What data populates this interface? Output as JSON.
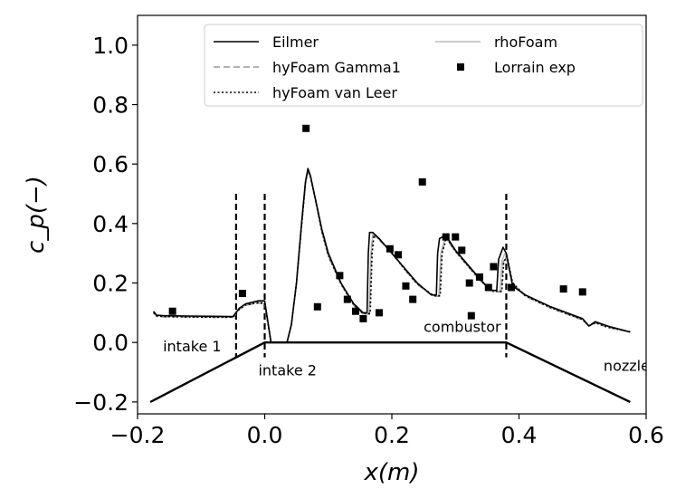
{
  "chart_data": {
    "type": "line",
    "title": "",
    "xlabel": "x(m)",
    "ylabel": "c_p(−)",
    "xlim": [
      -0.2,
      0.6
    ],
    "ylim": [
      -0.24,
      1.1
    ],
    "xticks": [
      -0.2,
      0.0,
      0.2,
      0.4,
      0.6
    ],
    "xtick_labels": [
      "−0.2",
      "0.0",
      "0.2",
      "0.4",
      "0.6"
    ],
    "yticks": [
      -0.2,
      0.0,
      0.2,
      0.4,
      0.6,
      0.8,
      1.0
    ],
    "ytick_labels": [
      "−0.2",
      "0.0",
      "0.2",
      "0.4",
      "0.6",
      "0.8",
      "1.0"
    ],
    "grid": false,
    "legend_placement": "top-right",
    "legend": [
      {
        "label": "Eilmer",
        "style": "solid",
        "color": "#000000"
      },
      {
        "label": "hyFoam Gamma1",
        "style": "dashed",
        "color": "#999999"
      },
      {
        "label": "hyFoam van Leer",
        "style": "dotted",
        "color": "#000000"
      },
      {
        "label": "rhoFoam",
        "style": "solid",
        "color": "#bbbbbb"
      },
      {
        "label": "Lorrain exp",
        "style": "marker",
        "color": "#000000"
      }
    ],
    "series": [
      {
        "name": "Eilmer",
        "style": "solid",
        "color": "#000000",
        "points": [
          [
            -0.175,
            0.105
          ],
          [
            -0.17,
            0.092
          ],
          [
            -0.16,
            0.09
          ],
          [
            -0.12,
            0.089
          ],
          [
            -0.08,
            0.088
          ],
          [
            -0.05,
            0.087
          ],
          [
            -0.04,
            0.115
          ],
          [
            -0.03,
            0.13
          ],
          [
            -0.01,
            0.14
          ],
          [
            0.0,
            0.14
          ],
          [
            0.01,
            0.0
          ],
          [
            0.035,
            0.0
          ],
          [
            0.042,
            0.06
          ],
          [
            0.05,
            0.2
          ],
          [
            0.058,
            0.4
          ],
          [
            0.064,
            0.54
          ],
          [
            0.068,
            0.585
          ],
          [
            0.072,
            0.56
          ],
          [
            0.08,
            0.48
          ],
          [
            0.09,
            0.38
          ],
          [
            0.1,
            0.3
          ],
          [
            0.12,
            0.2
          ],
          [
            0.14,
            0.13
          ],
          [
            0.155,
            0.1
          ],
          [
            0.161,
            0.1
          ],
          [
            0.163,
            0.3
          ],
          [
            0.165,
            0.37
          ],
          [
            0.17,
            0.37
          ],
          [
            0.18,
            0.35
          ],
          [
            0.2,
            0.3
          ],
          [
            0.22,
            0.25
          ],
          [
            0.24,
            0.2
          ],
          [
            0.262,
            0.16
          ],
          [
            0.27,
            0.16
          ],
          [
            0.272,
            0.3
          ],
          [
            0.275,
            0.35
          ],
          [
            0.285,
            0.36
          ],
          [
            0.3,
            0.31
          ],
          [
            0.32,
            0.26
          ],
          [
            0.34,
            0.21
          ],
          [
            0.355,
            0.175
          ],
          [
            0.365,
            0.175
          ],
          [
            0.368,
            0.28
          ],
          [
            0.375,
            0.32
          ],
          [
            0.38,
            0.3
          ],
          [
            0.39,
            0.19
          ],
          [
            0.41,
            0.16
          ],
          [
            0.45,
            0.12
          ],
          [
            0.5,
            0.08
          ],
          [
            0.51,
            0.055
          ],
          [
            0.52,
            0.07
          ],
          [
            0.54,
            0.055
          ],
          [
            0.575,
            0.035
          ]
        ]
      },
      {
        "name": "hyFoam Gamma1",
        "style": "dashed",
        "color": "#999999",
        "points": [
          [
            -0.175,
            0.1
          ],
          [
            -0.17,
            0.088
          ],
          [
            -0.16,
            0.086
          ],
          [
            -0.12,
            0.085
          ],
          [
            -0.08,
            0.084
          ],
          [
            -0.05,
            0.084
          ],
          [
            -0.04,
            0.11
          ],
          [
            -0.03,
            0.125
          ],
          [
            -0.01,
            0.132
          ],
          [
            0.0,
            0.13
          ],
          [
            0.01,
            0.0
          ],
          [
            0.035,
            0.0
          ],
          [
            0.042,
            0.06
          ],
          [
            0.05,
            0.2
          ],
          [
            0.058,
            0.39
          ],
          [
            0.064,
            0.53
          ],
          [
            0.068,
            0.58
          ],
          [
            0.072,
            0.555
          ],
          [
            0.08,
            0.475
          ],
          [
            0.09,
            0.37
          ],
          [
            0.1,
            0.29
          ],
          [
            0.12,
            0.195
          ],
          [
            0.14,
            0.125
          ],
          [
            0.155,
            0.095
          ],
          [
            0.165,
            0.095
          ],
          [
            0.168,
            0.3
          ],
          [
            0.17,
            0.36
          ],
          [
            0.18,
            0.345
          ],
          [
            0.2,
            0.3
          ],
          [
            0.22,
            0.245
          ],
          [
            0.24,
            0.195
          ],
          [
            0.265,
            0.155
          ],
          [
            0.275,
            0.155
          ],
          [
            0.278,
            0.3
          ],
          [
            0.285,
            0.35
          ],
          [
            0.3,
            0.305
          ],
          [
            0.32,
            0.255
          ],
          [
            0.34,
            0.205
          ],
          [
            0.36,
            0.17
          ],
          [
            0.372,
            0.17
          ],
          [
            0.375,
            0.27
          ],
          [
            0.38,
            0.29
          ],
          [
            0.39,
            0.2
          ],
          [
            0.41,
            0.155
          ],
          [
            0.45,
            0.115
          ],
          [
            0.5,
            0.075
          ],
          [
            0.51,
            0.055
          ],
          [
            0.52,
            0.065
          ],
          [
            0.54,
            0.05
          ],
          [
            0.575,
            0.035
          ]
        ]
      },
      {
        "name": "hyFoam van Leer",
        "style": "dotted",
        "color": "#000000",
        "points": [
          [
            -0.175,
            0.1
          ],
          [
            -0.17,
            0.089
          ],
          [
            -0.16,
            0.087
          ],
          [
            -0.12,
            0.086
          ],
          [
            -0.08,
            0.085
          ],
          [
            -0.05,
            0.085
          ],
          [
            -0.04,
            0.112
          ],
          [
            -0.03,
            0.126
          ],
          [
            -0.01,
            0.134
          ],
          [
            0.0,
            0.132
          ],
          [
            0.01,
            0.0
          ],
          [
            0.035,
            0.0
          ],
          [
            0.042,
            0.06
          ],
          [
            0.05,
            0.2
          ],
          [
            0.058,
            0.39
          ],
          [
            0.064,
            0.535
          ],
          [
            0.068,
            0.58
          ],
          [
            0.072,
            0.557
          ],
          [
            0.08,
            0.478
          ],
          [
            0.09,
            0.373
          ],
          [
            0.1,
            0.293
          ],
          [
            0.12,
            0.197
          ],
          [
            0.14,
            0.127
          ],
          [
            0.155,
            0.097
          ],
          [
            0.166,
            0.097
          ],
          [
            0.169,
            0.3
          ],
          [
            0.172,
            0.362
          ],
          [
            0.18,
            0.348
          ],
          [
            0.2,
            0.302
          ],
          [
            0.22,
            0.247
          ],
          [
            0.24,
            0.197
          ],
          [
            0.266,
            0.157
          ],
          [
            0.276,
            0.157
          ],
          [
            0.279,
            0.3
          ],
          [
            0.286,
            0.352
          ],
          [
            0.3,
            0.307
          ],
          [
            0.32,
            0.257
          ],
          [
            0.34,
            0.207
          ],
          [
            0.36,
            0.172
          ],
          [
            0.373,
            0.172
          ],
          [
            0.376,
            0.27
          ],
          [
            0.381,
            0.29
          ],
          [
            0.39,
            0.2
          ],
          [
            0.41,
            0.157
          ],
          [
            0.45,
            0.117
          ],
          [
            0.5,
            0.077
          ],
          [
            0.51,
            0.056
          ],
          [
            0.52,
            0.066
          ],
          [
            0.54,
            0.051
          ],
          [
            0.575,
            0.036
          ]
        ]
      },
      {
        "name": "rhoFoam",
        "style": "solid",
        "color": "#bbbbbb",
        "points": [
          [
            -0.175,
            0.102
          ],
          [
            -0.17,
            0.09
          ],
          [
            -0.16,
            0.088
          ],
          [
            -0.12,
            0.087
          ],
          [
            -0.08,
            0.086
          ],
          [
            -0.05,
            0.086
          ],
          [
            -0.04,
            0.113
          ],
          [
            -0.03,
            0.128
          ],
          [
            -0.01,
            0.136
          ],
          [
            0.0,
            0.135
          ],
          [
            0.01,
            0.0
          ],
          [
            0.035,
            0.0
          ],
          [
            0.042,
            0.06
          ],
          [
            0.05,
            0.2
          ],
          [
            0.058,
            0.395
          ],
          [
            0.064,
            0.535
          ],
          [
            0.068,
            0.583
          ],
          [
            0.072,
            0.558
          ],
          [
            0.08,
            0.478
          ],
          [
            0.09,
            0.375
          ],
          [
            0.1,
            0.295
          ],
          [
            0.12,
            0.198
          ],
          [
            0.14,
            0.128
          ],
          [
            0.155,
            0.098
          ],
          [
            0.164,
            0.098
          ],
          [
            0.167,
            0.3
          ],
          [
            0.17,
            0.365
          ],
          [
            0.18,
            0.348
          ],
          [
            0.2,
            0.302
          ],
          [
            0.22,
            0.248
          ],
          [
            0.24,
            0.198
          ],
          [
            0.264,
            0.158
          ],
          [
            0.274,
            0.158
          ],
          [
            0.277,
            0.3
          ],
          [
            0.284,
            0.355
          ],
          [
            0.3,
            0.308
          ],
          [
            0.32,
            0.258
          ],
          [
            0.34,
            0.208
          ],
          [
            0.36,
            0.173
          ],
          [
            0.37,
            0.173
          ],
          [
            0.373,
            0.275
          ],
          [
            0.378,
            0.3
          ],
          [
            0.39,
            0.195
          ],
          [
            0.41,
            0.158
          ],
          [
            0.45,
            0.118
          ],
          [
            0.5,
            0.078
          ],
          [
            0.51,
            0.057
          ],
          [
            0.52,
            0.068
          ],
          [
            0.54,
            0.053
          ],
          [
            0.575,
            0.036
          ]
        ]
      }
    ],
    "experimental": {
      "name": "Lorrain exp",
      "points": [
        [
          -0.145,
          0.105
        ],
        [
          -0.035,
          0.165
        ],
        [
          0.065,
          0.72
        ],
        [
          0.083,
          0.12
        ],
        [
          0.118,
          0.225
        ],
        [
          0.13,
          0.145
        ],
        [
          0.143,
          0.105
        ],
        [
          0.155,
          0.08
        ],
        [
          0.18,
          0.1
        ],
        [
          0.197,
          0.315
        ],
        [
          0.21,
          0.295
        ],
        [
          0.222,
          0.19
        ],
        [
          0.233,
          0.145
        ],
        [
          0.248,
          0.54
        ],
        [
          0.285,
          0.355
        ],
        [
          0.3,
          0.355
        ],
        [
          0.31,
          0.31
        ],
        [
          0.322,
          0.2
        ],
        [
          0.325,
          0.09
        ],
        [
          0.338,
          0.22
        ],
        [
          0.352,
          0.185
        ],
        [
          0.36,
          0.255
        ],
        [
          0.388,
          0.185
        ],
        [
          0.47,
          0.18
        ],
        [
          0.5,
          0.17
        ]
      ]
    },
    "annotations": {
      "dividers_x": [
        -0.045,
        0.0,
        0.38
      ],
      "geometry": [
        [
          -0.18,
          -0.2
        ],
        [
          0.0,
          0.0
        ],
        [
          0.38,
          0.0
        ],
        [
          0.575,
          -0.2
        ]
      ],
      "labels": [
        {
          "text": "intake 1",
          "x": -0.16,
          "y": -0.03
        },
        {
          "text": "intake 2",
          "x": -0.01,
          "y": -0.11
        },
        {
          "text": "combustor",
          "x": 0.25,
          "y": 0.035
        },
        {
          "text": "nozzle",
          "x": 0.533,
          "y": -0.095
        }
      ]
    }
  }
}
